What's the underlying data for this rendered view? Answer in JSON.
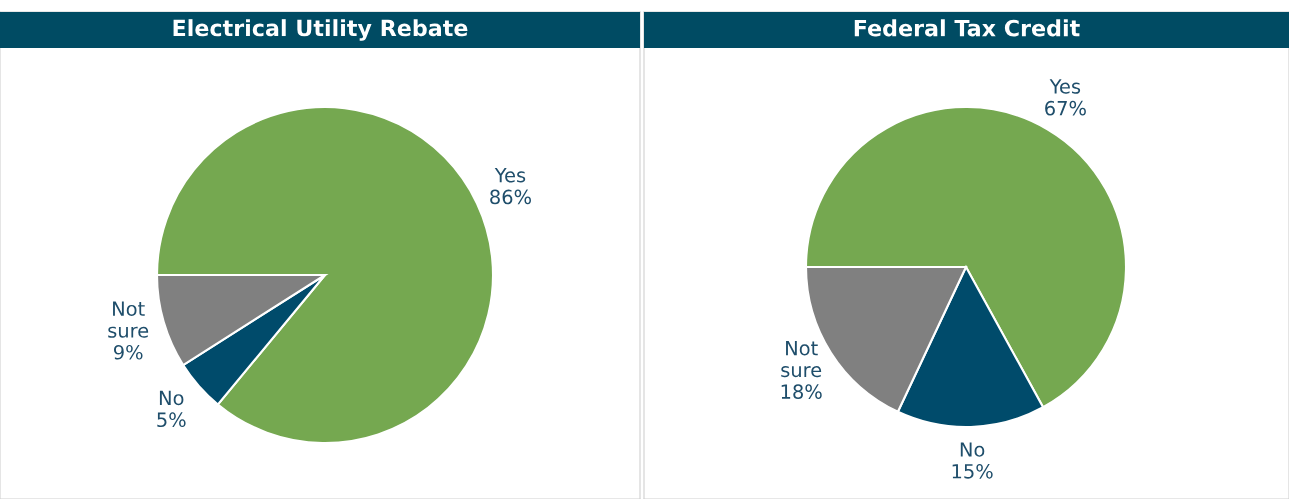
{
  "chart_data": [
    {
      "type": "pie",
      "title": "Electrical Utility Rebate",
      "categories": [
        "Yes",
        "No",
        "Not sure"
      ],
      "values": [
        86,
        5,
        9
      ],
      "value_labels": [
        "86%",
        "5%",
        "9%"
      ],
      "colors": [
        "#75a850",
        "#004b6b",
        "#808080"
      ]
    },
    {
      "type": "pie",
      "title": "Federal Tax Credit",
      "categories": [
        "Yes",
        "No",
        "Not sure"
      ],
      "values": [
        67,
        15,
        18
      ],
      "value_labels": [
        "67%",
        "15%",
        "18%"
      ],
      "colors": [
        "#75a850",
        "#004b6b",
        "#808080"
      ]
    }
  ]
}
